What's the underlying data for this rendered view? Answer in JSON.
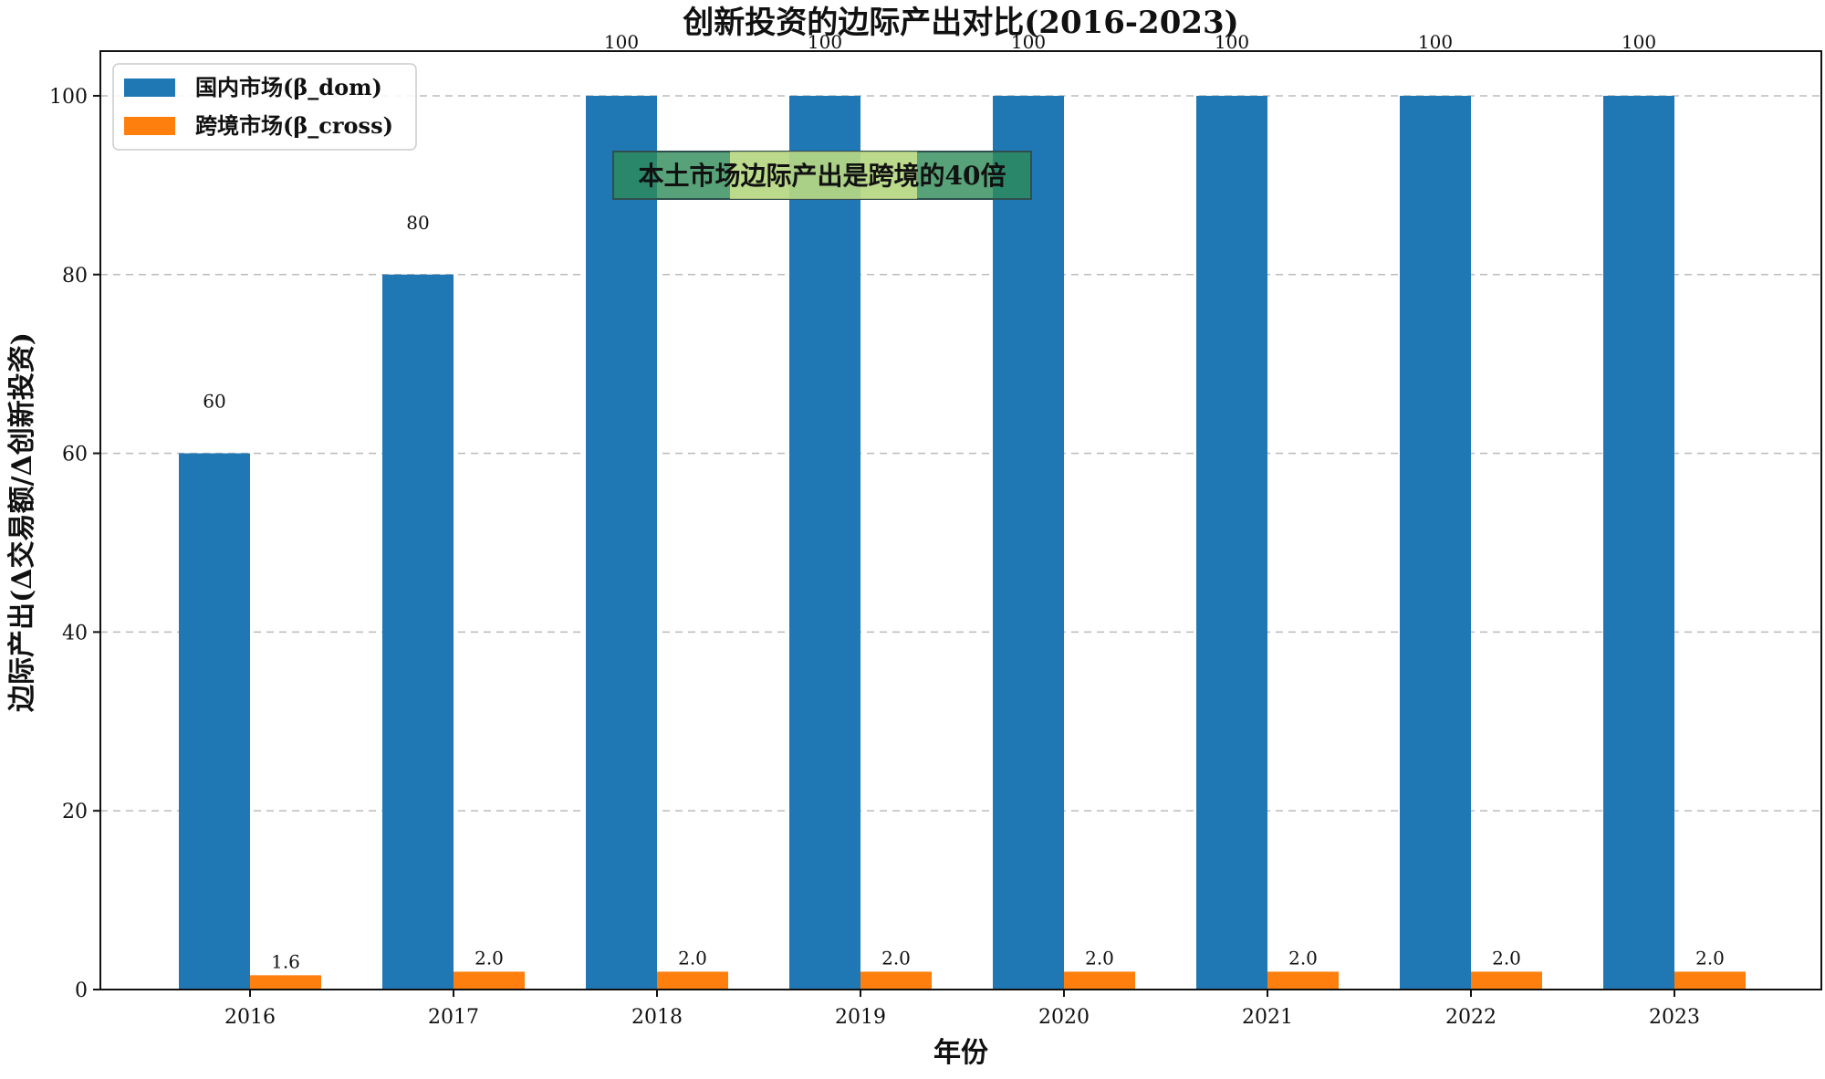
{
  "chart_data": {
    "type": "bar",
    "title": "创新投资的边际产出对比(2016-2023)",
    "xlabel": "年份",
    "ylabel": "边际产出(Δ交易额/Δ创新投资)",
    "categories": [
      "2016",
      "2017",
      "2018",
      "2019",
      "2020",
      "2021",
      "2022",
      "2023"
    ],
    "series": [
      {
        "name": "国内市场(β_dom)",
        "values": [
          60,
          80,
          100,
          100,
          100,
          100,
          100,
          100
        ],
        "color": "#1f77b4",
        "labels": [
          "60",
          "80",
          "100",
          "100",
          "100",
          "100",
          "100",
          "100"
        ]
      },
      {
        "name": "跨境市场(β_cross)",
        "values": [
          1.6,
          2.0,
          2.0,
          2.0,
          2.0,
          2.0,
          2.0,
          2.0
        ],
        "color": "#ff7f0e",
        "labels": [
          "1.6",
          "2.0",
          "2.0",
          "2.0",
          "2.0",
          "2.0",
          "2.0",
          "2.0"
        ]
      }
    ],
    "ylim": [
      0,
      105
    ],
    "yticks": [
      0,
      20,
      40,
      60,
      80,
      100
    ],
    "grid": "y-dashed",
    "legend_position": "top-left",
    "annotation": {
      "text": "本土市场边际产出是跨境的40倍",
      "box_fill": "#2e8b57",
      "box_highlight": "#ffff99"
    }
  }
}
